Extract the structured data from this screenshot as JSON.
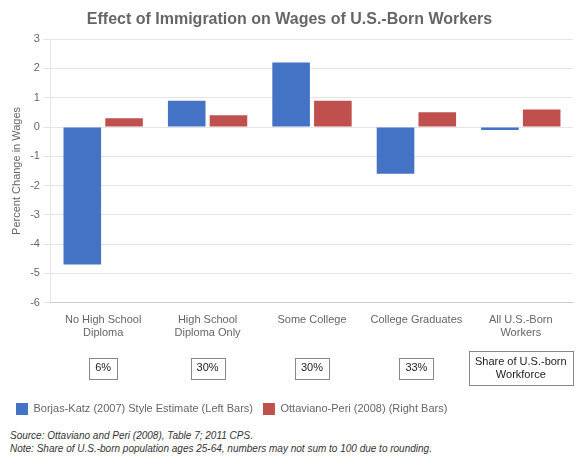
{
  "chart_data": {
    "type": "bar",
    "title": "Effect of Immigration on Wages of U.S.-Born Workers",
    "categories": [
      "No High School\nDiploma",
      "High School\nDiploma Only",
      "Some College",
      "College Graduates",
      "All U.S.-Born\nWorkers"
    ],
    "series": [
      {
        "name": "Borjas-Katz (2007) Style Estimate (Left Bars)",
        "color": "#4472C4",
        "values": [
          -4.7,
          0.9,
          2.2,
          -1.6,
          -0.1
        ]
      },
      {
        "name": "Ottaviano-Peri (2008) (Right Bars)",
        "color": "#C0504D",
        "values": [
          0.3,
          0.4,
          0.9,
          0.5,
          0.6
        ]
      }
    ],
    "ylabel": "Percent Change in Wages",
    "ylim": [
      -6,
      3
    ],
    "yticks": [
      -6,
      -5,
      -4,
      -3,
      -2,
      -1,
      0,
      1,
      2,
      3
    ],
    "annotations": [
      "6%",
      "30%",
      "30%",
      "33%",
      "Share of U.S.-born\nWorkforce"
    ],
    "source": "Source: Ottaviano and Peri (2008), Table 7; 2011 CPS.\nNote: Share of U.S.-born population ages 25-64, numbers may not sum to 100 due to rounding.",
    "grid": true,
    "legend": "bottom"
  }
}
